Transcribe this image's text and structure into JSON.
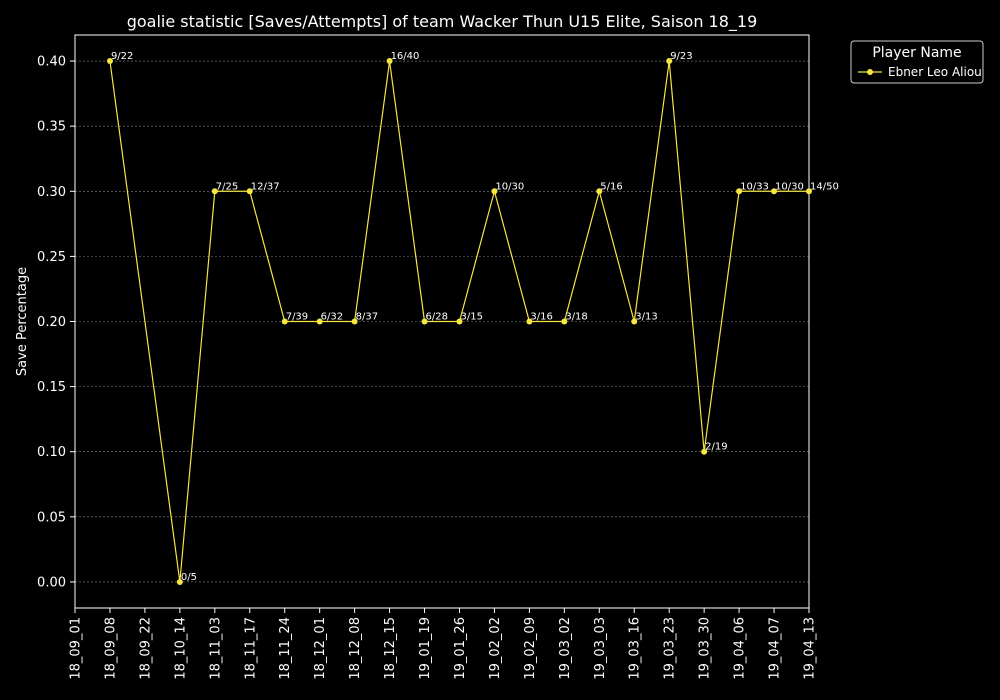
{
  "chart_data": {
    "type": "line",
    "title": "goalie statistic [Saves/Attempts] of team Wacker Thun U15 Elite, Saison 18_19",
    "xlabel": "",
    "ylabel": "Save Percentage",
    "categories": [
      "18_09_01",
      "18_09_08",
      "18_09_22",
      "18_10_14",
      "18_11_03",
      "18_11_17",
      "18_11_24",
      "18_12_01",
      "18_12_08",
      "18_12_15",
      "19_01_19",
      "19_01_26",
      "19_02_02",
      "19_02_09",
      "19_03_02",
      "19_03_03",
      "19_03_16",
      "19_03_23",
      "19_03_30",
      "19_04_06",
      "19_04_07",
      "19_04_13"
    ],
    "ylim": [
      -0.02,
      0.42
    ],
    "yticks": [
      "0.00",
      "0.05",
      "0.10",
      "0.15",
      "0.20",
      "0.25",
      "0.30",
      "0.35",
      "0.40"
    ],
    "grid": true,
    "legend_title": "Player Name",
    "legend_position": "outside-top-right",
    "series": [
      {
        "name": "Ebner Leo Aliou",
        "color": "#f5e642",
        "points": [
          {
            "x": "18_09_08",
            "y": 0.4,
            "label": "9/22"
          },
          {
            "x": "18_10_14",
            "y": 0.0,
            "label": "0/5"
          },
          {
            "x": "18_11_03",
            "y": 0.3,
            "label": "7/25"
          },
          {
            "x": "18_11_17",
            "y": 0.3,
            "label": "12/37"
          },
          {
            "x": "18_11_24",
            "y": 0.2,
            "label": "7/39"
          },
          {
            "x": "18_12_01",
            "y": 0.2,
            "label": "6/32"
          },
          {
            "x": "18_12_08",
            "y": 0.2,
            "label": "8/37"
          },
          {
            "x": "18_12_15",
            "y": 0.4,
            "label": "16/40"
          },
          {
            "x": "19_01_19",
            "y": 0.2,
            "label": "6/28"
          },
          {
            "x": "19_01_26",
            "y": 0.2,
            "label": "3/15"
          },
          {
            "x": "19_02_02",
            "y": 0.3,
            "label": "10/30"
          },
          {
            "x": "19_02_09",
            "y": 0.2,
            "label": "3/16"
          },
          {
            "x": "19_03_02",
            "y": 0.2,
            "label": "3/18"
          },
          {
            "x": "19_03_03",
            "y": 0.3,
            "label": "5/16"
          },
          {
            "x": "19_03_16",
            "y": 0.2,
            "label": "3/13"
          },
          {
            "x": "19_03_23",
            "y": 0.4,
            "label": "9/23"
          },
          {
            "x": "19_03_30",
            "y": 0.1,
            "label": "2/19"
          },
          {
            "x": "19_04_06",
            "y": 0.3,
            "label": "10/33"
          },
          {
            "x": "19_04_07",
            "y": 0.3,
            "label": "10/30"
          },
          {
            "x": "19_04_13",
            "y": 0.3,
            "label": "14/50"
          }
        ]
      }
    ]
  }
}
